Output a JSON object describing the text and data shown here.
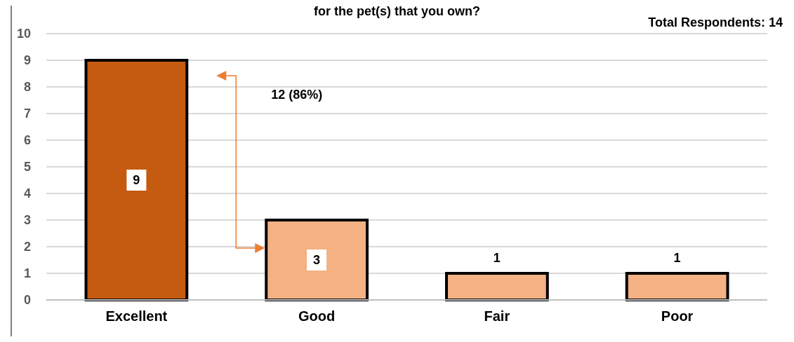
{
  "chart_data": {
    "type": "bar",
    "title": "for the pet(s) that you own?",
    "categories": [
      "Excellent",
      "Good",
      "Fair",
      "Poor"
    ],
    "values": [
      9,
      3,
      1,
      1
    ],
    "colors": [
      "#c55a11",
      "#f4b183",
      "#f4b183",
      "#f4b183"
    ],
    "ylim": [
      0,
      10
    ],
    "yticks": [
      0,
      1,
      2,
      3,
      4,
      5,
      6,
      7,
      8,
      9,
      10
    ],
    "grid": "y",
    "data_labels": true,
    "annotations": [
      "Total Respondents: 14",
      "12 (86%)"
    ]
  }
}
